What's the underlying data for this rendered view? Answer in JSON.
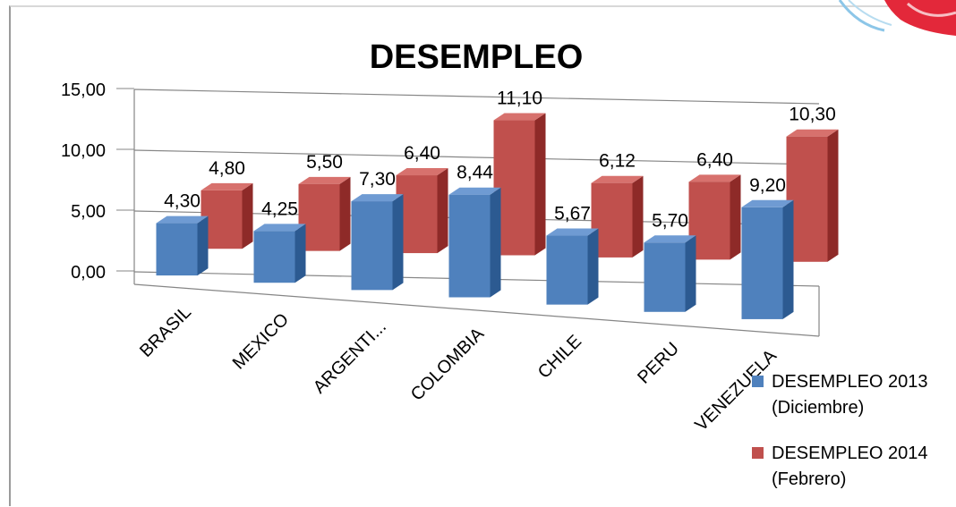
{
  "chart_data": {
    "type": "bar",
    "title": "DESEMPLEO",
    "xlabel": "",
    "ylabel": "",
    "ylim": [
      0,
      15
    ],
    "y_ticks": [
      "0,00",
      "5,00",
      "10,00",
      "15,00"
    ],
    "grid": true,
    "legend_position": "bottom-right",
    "categories": [
      "BRASIL",
      "MEXICO",
      "ARGENTI...",
      "COLOMBIA",
      "CHILE",
      "PERU",
      "VENEZUELA"
    ],
    "series": [
      {
        "name_line1": "DESEMPLEO 2013",
        "name_line2": "(Diciembre)",
        "values": [
          4.3,
          4.25,
          7.3,
          8.44,
          5.67,
          5.7,
          9.2
        ],
        "labels": [
          "4,30",
          "4,25",
          "7,30",
          "8,44",
          "5,67",
          "5,70",
          "9,20"
        ],
        "color": "#4f81bd"
      },
      {
        "name_line1": "DESEMPLEO 2014",
        "name_line2": "(Febrero)",
        "values": [
          4.8,
          5.5,
          6.4,
          11.1,
          6.12,
          6.4,
          10.3
        ],
        "labels": [
          "4,80",
          "5,50",
          "6,40",
          "11,10",
          "6,12",
          "6,40",
          "10,30"
        ],
        "color": "#c0504d"
      }
    ]
  },
  "colors": {
    "grid": "#868686",
    "series1_top": "#6f9bd3",
    "series1_side": "#2c5a91",
    "series2_top": "#d7716d",
    "series2_side": "#8e2a28"
  }
}
